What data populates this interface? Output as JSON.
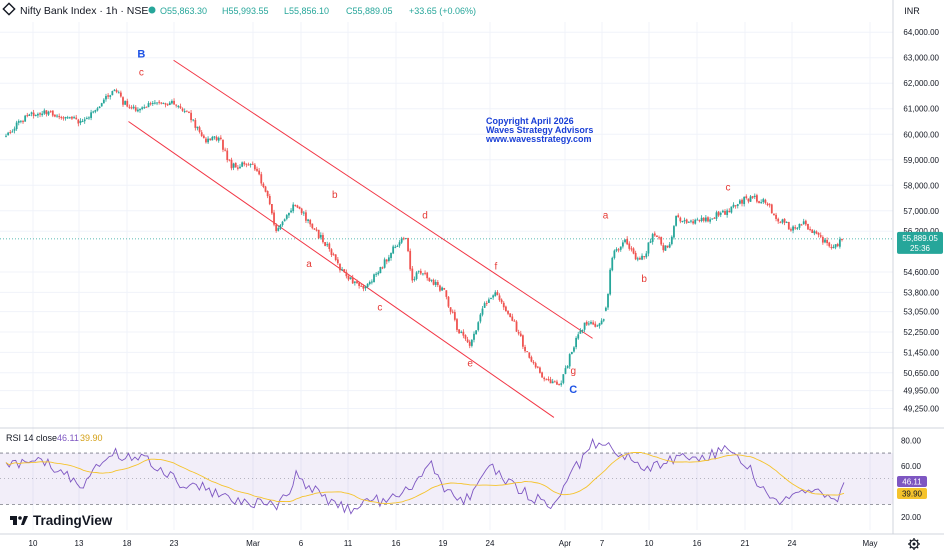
{
  "header": {
    "symbol": "Nifty Bank Index · 1h · NSE",
    "open": "O55,863.30",
    "high": "H55,993.55",
    "low": "L55,856.10",
    "close": "C55,889.05",
    "change": "+33.65 (+0.06%)",
    "currency": "INR"
  },
  "watermark": {
    "line1": "Copyright April 2026",
    "line2": "Waves Strategy Advisors",
    "line3": "www.wavesstrategy.com"
  },
  "brand": {
    "name": "TradingView"
  },
  "colors": {
    "up": "#26a69a",
    "down": "#ef5350",
    "channel": "#f23645",
    "wave_label": "#e53935",
    "major_label": "#1e53e5",
    "rsi_line": "#7e57c2",
    "rsi_ma": "#f5c32c",
    "rsi_band": "#7e57c2",
    "watermark": "#1a3fd6",
    "price_line": "#26a69a"
  },
  "chart_data": [
    {
      "type": "candlestick",
      "title": "Nifty Bank Index · 1h · NSE",
      "y_ticks": [
        49250,
        49950,
        50650,
        51450,
        52250,
        53050,
        53800,
        54600,
        56200,
        57000,
        58000,
        59000,
        60000,
        61000,
        62000,
        63000,
        64000
      ],
      "ylim": [
        48800,
        64400
      ],
      "last_price": "55,889.05",
      "countdown": "25:36",
      "x_ticks": [
        "10",
        "13",
        "18",
        "23",
        "Mar",
        "6",
        "11",
        "16",
        "19",
        "24",
        "Apr",
        "7",
        "10",
        "16",
        "21",
        "24",
        "May"
      ],
      "path": [
        [
          0,
          59950
        ],
        [
          3,
          60700
        ],
        [
          6,
          60900
        ],
        [
          9,
          60750
        ],
        [
          12,
          60400
        ],
        [
          14,
          61000
        ],
        [
          17,
          61800
        ],
        [
          18,
          61300
        ],
        [
          20,
          61000
        ],
        [
          22,
          61200
        ],
        [
          25,
          61250
        ],
        [
          28,
          60950
        ],
        [
          31,
          59700
        ],
        [
          33,
          59900
        ],
        [
          35,
          58700
        ],
        [
          38,
          58900
        ],
        [
          40,
          58000
        ],
        [
          42,
          56200
        ],
        [
          43,
          56700
        ],
        [
          45,
          57300
        ],
        [
          48,
          56200
        ],
        [
          50,
          55600
        ],
        [
          52,
          54700
        ],
        [
          54,
          54200
        ],
        [
          56,
          54000
        ],
        [
          58,
          54700
        ],
        [
          60,
          55500
        ],
        [
          62,
          56100
        ],
        [
          63,
          54200
        ],
        [
          64,
          54600
        ],
        [
          66,
          54300
        ],
        [
          68,
          53800
        ],
        [
          70,
          52400
        ],
        [
          72,
          51600
        ],
        [
          74,
          53200
        ],
        [
          76,
          53800
        ],
        [
          77,
          53300
        ],
        [
          79,
          52500
        ],
        [
          81,
          51300
        ],
        [
          84,
          50300
        ],
        [
          86,
          50100
        ],
        [
          88,
          51700
        ],
        [
          90,
          52600
        ],
        [
          92,
          52500
        ],
        [
          93,
          53000
        ],
        [
          94,
          55200
        ],
        [
          96,
          55800
        ],
        [
          97,
          55400
        ],
        [
          98,
          55100
        ],
        [
          99,
          55200
        ],
        [
          100,
          55900
        ],
        [
          101,
          56100
        ],
        [
          102,
          55500
        ],
        [
          103,
          55700
        ],
        [
          104,
          56800
        ],
        [
          106,
          56500
        ],
        [
          108,
          56600
        ],
        [
          110,
          56800
        ],
        [
          112,
          57000
        ],
        [
          114,
          57400
        ],
        [
          116,
          57500
        ],
        [
          118,
          57300
        ],
        [
          120,
          56600
        ],
        [
          122,
          56300
        ],
        [
          124,
          56500
        ],
        [
          126,
          56000
        ],
        [
          128,
          55500
        ],
        [
          130,
          55900
        ]
      ],
      "gaps_after": [
        93
      ],
      "channel_upper": {
        "from": [
          26,
          62900
        ],
        "to": [
          91,
          52000
        ]
      },
      "channel_lower": {
        "from": [
          19,
          60500
        ],
        "to": [
          85,
          48900
        ]
      },
      "wave_labels": [
        {
          "text": "B",
          "x": 21,
          "y": 63000,
          "major": true
        },
        {
          "text": "c",
          "x": 21,
          "y": 62300,
          "major": false
        },
        {
          "text": "a",
          "x": 47,
          "y": 54800,
          "major": false
        },
        {
          "text": "b",
          "x": 51,
          "y": 57500,
          "major": false
        },
        {
          "text": "c",
          "x": 58,
          "y": 53100,
          "major": false
        },
        {
          "text": "d",
          "x": 65,
          "y": 56700,
          "major": false
        },
        {
          "text": "e",
          "x": 72,
          "y": 50900,
          "major": false
        },
        {
          "text": "f",
          "x": 76,
          "y": 54700,
          "major": false
        },
        {
          "text": "g",
          "x": 88,
          "y": 50600,
          "major": false
        },
        {
          "text": "C",
          "x": 88,
          "y": 49850,
          "major": true
        },
        {
          "text": "a",
          "x": 93,
          "y": 56700,
          "major": false
        },
        {
          "text": "b",
          "x": 99,
          "y": 54200,
          "major": false
        },
        {
          "text": "c",
          "x": 112,
          "y": 57800,
          "major": false
        }
      ]
    },
    {
      "type": "line",
      "title": "RSI 14 close",
      "series": [
        {
          "name": "RSI",
          "current": "46.11"
        },
        {
          "name": "MA",
          "current": "39.90"
        }
      ],
      "y_ticks": [
        20,
        60,
        80
      ],
      "bands": [
        30,
        70
      ],
      "ylim": [
        10,
        88
      ],
      "path": [
        [
          0,
          60
        ],
        [
          5,
          65
        ],
        [
          9,
          55
        ],
        [
          12,
          40
        ],
        [
          14,
          62
        ],
        [
          17,
          70
        ],
        [
          18,
          65
        ],
        [
          21,
          66
        ],
        [
          24,
          58
        ],
        [
          27,
          45
        ],
        [
          30,
          45
        ],
        [
          34,
          35
        ],
        [
          37,
          32
        ],
        [
          40,
          30
        ],
        [
          42,
          28
        ],
        [
          44,
          38
        ],
        [
          45,
          55
        ],
        [
          47,
          42
        ],
        [
          49,
          38
        ],
        [
          51,
          30
        ],
        [
          53,
          26
        ],
        [
          55,
          28
        ],
        [
          57,
          38
        ],
        [
          59,
          28
        ],
        [
          61,
          40
        ],
        [
          63,
          45
        ],
        [
          65,
          55
        ],
        [
          66,
          62
        ],
        [
          68,
          44
        ],
        [
          70,
          36
        ],
        [
          71,
          30
        ],
        [
          73,
          46
        ],
        [
          75,
          60
        ],
        [
          77,
          52
        ],
        [
          79,
          44
        ],
        [
          81,
          38
        ],
        [
          83,
          32
        ],
        [
          85,
          30
        ],
        [
          87,
          50
        ],
        [
          89,
          62
        ],
        [
          90,
          72
        ],
        [
          91,
          78
        ],
        [
          93,
          77
        ],
        [
          95,
          70
        ],
        [
          97,
          65
        ],
        [
          99,
          55
        ],
        [
          100,
          60
        ],
        [
          102,
          62
        ],
        [
          105,
          68
        ],
        [
          108,
          66
        ],
        [
          111,
          72
        ],
        [
          113,
          70
        ],
        [
          115,
          60
        ],
        [
          117,
          45
        ],
        [
          119,
          35
        ],
        [
          121,
          32
        ],
        [
          123,
          40
        ],
        [
          125,
          42
        ],
        [
          127,
          36
        ],
        [
          129,
          35
        ],
        [
          130,
          46
        ]
      ]
    }
  ]
}
